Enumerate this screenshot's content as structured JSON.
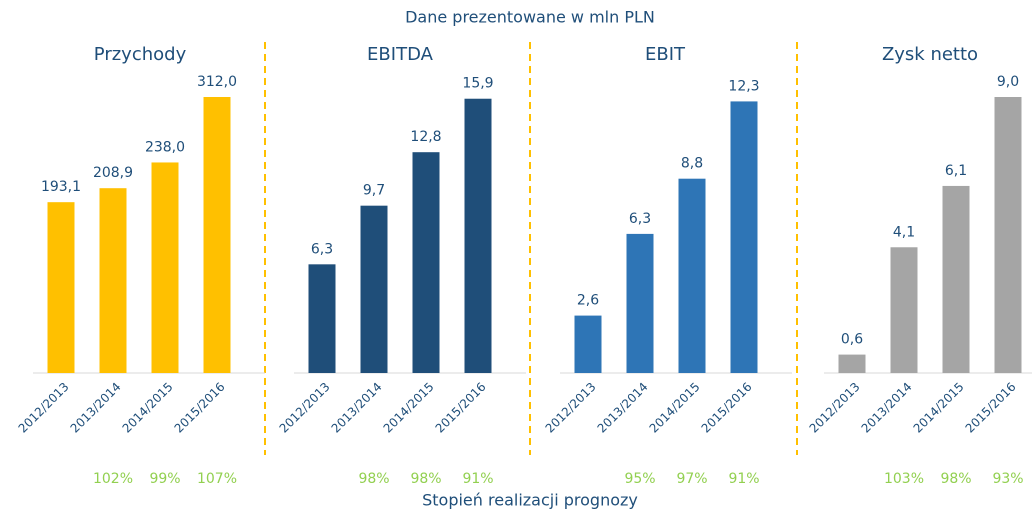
{
  "header": {
    "title": "Dane prezentowane w mln PLN",
    "footer": "Stopień realizacji prognozy"
  },
  "chart_data": [
    {
      "type": "bar",
      "title": "Przychody",
      "categories": [
        "2012/2013",
        "2013/2014",
        "2014/2015",
        "2015/2016"
      ],
      "values": [
        193.1,
        208.9,
        238.0,
        312.0
      ],
      "value_labels": [
        "193,1",
        "208,9",
        "238,0",
        "312,0"
      ],
      "color": "#ffc000",
      "ylim": [
        0,
        312
      ],
      "annotations": [
        null,
        "102%",
        "99%",
        "107%"
      ]
    },
    {
      "type": "bar",
      "title": "EBITDA",
      "categories": [
        "2012/2013",
        "2013/2014",
        "2014/2015",
        "2015/2016"
      ],
      "values": [
        6.3,
        9.7,
        12.8,
        15.9
      ],
      "value_labels": [
        "6,3",
        "9,7",
        "12,8",
        "15,9"
      ],
      "color": "#1f4e79",
      "ylim": [
        0,
        16
      ],
      "annotations": [
        null,
        "98%",
        "98%",
        "91%"
      ]
    },
    {
      "type": "bar",
      "title": "EBIT",
      "categories": [
        "2012/2013",
        "2013/2014",
        "2014/2015",
        "2015/2016"
      ],
      "values": [
        2.6,
        6.3,
        8.8,
        12.3
      ],
      "value_labels": [
        "2,6",
        "6,3",
        "8,8",
        "12,3"
      ],
      "color": "#2e75b6",
      "ylim": [
        0,
        12.5
      ],
      "annotations": [
        null,
        "95%",
        "97%",
        "91%"
      ]
    },
    {
      "type": "bar",
      "title": "Zysk netto",
      "categories": [
        "2012/2013",
        "2013/2014",
        "2014/2015",
        "2015/2016"
      ],
      "values": [
        0.6,
        4.1,
        6.1,
        9.0
      ],
      "value_labels": [
        "0,6",
        "4,1",
        "6,1",
        "9,0"
      ],
      "color": "#a5a5a5",
      "ylim": [
        0,
        9
      ],
      "annotations": [
        null,
        "103%",
        "98%",
        "93%"
      ]
    }
  ]
}
